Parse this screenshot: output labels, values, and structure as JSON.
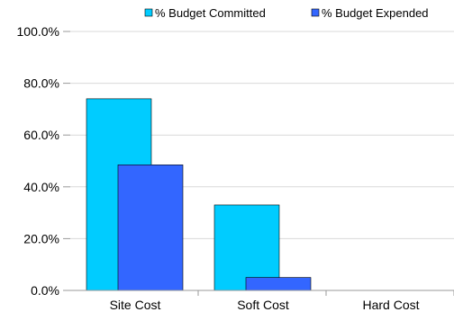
{
  "chart_data": {
    "type": "bar",
    "title": "",
    "xlabel": "",
    "ylabel": "",
    "categories": [
      "Site Cost",
      "Soft Cost",
      "Hard Cost"
    ],
    "series": [
      {
        "name": "% Budget Committed",
        "values": [
          74.0,
          33.0,
          0.0
        ],
        "color": "#00ccff"
      },
      {
        "name": "% Budget Expended",
        "values": [
          48.5,
          5.0,
          0.0
        ],
        "color": "#3366ff"
      }
    ],
    "ylim": [
      0,
      100
    ],
    "yticks": [
      "0.0%",
      "20.0%",
      "40.0%",
      "60.0%",
      "80.0%",
      "100.0%"
    ],
    "ytick_values": [
      0,
      20,
      40,
      60,
      80,
      100
    ],
    "grid": true,
    "legend_position": "top-right"
  }
}
